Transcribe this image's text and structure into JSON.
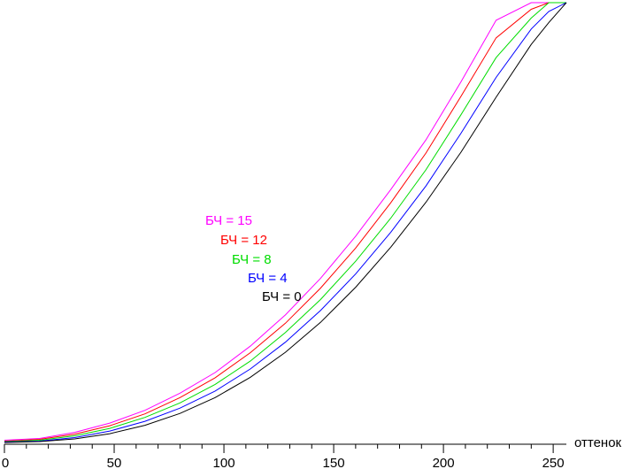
{
  "chart_data": {
    "type": "line",
    "xlabel": "оттенок",
    "ylabel": "",
    "xlim": [
      0,
      256
    ],
    "ylim": [
      0,
      1
    ],
    "xticks": [
      0,
      50,
      100,
      150,
      200,
      250
    ],
    "grid": false,
    "legend": "inline labels, center-left",
    "x": [
      0,
      16,
      32,
      48,
      64,
      80,
      96,
      112,
      128,
      144,
      160,
      176,
      192,
      208,
      224,
      240,
      248,
      256
    ],
    "series": [
      {
        "name": "БЧ = 15",
        "color": "#ff00ff",
        "values": [
          0.005,
          0.009,
          0.023,
          0.044,
          0.073,
          0.112,
          0.159,
          0.219,
          0.29,
          0.373,
          0.469,
          0.575,
          0.688,
          0.82,
          0.96,
          1.0,
          1.0,
          1.0
        ]
      },
      {
        "name": "БЧ = 12",
        "color": "#ff0000",
        "values": [
          0.003,
          0.007,
          0.019,
          0.038,
          0.065,
          0.102,
          0.147,
          0.204,
          0.271,
          0.351,
          0.442,
          0.545,
          0.658,
          0.787,
          0.92,
          0.985,
          1.0,
          1.0
        ]
      },
      {
        "name": "БЧ = 8",
        "color": "#00dd00",
        "values": [
          0.002,
          0.005,
          0.015,
          0.032,
          0.057,
          0.09,
          0.132,
          0.185,
          0.25,
          0.325,
          0.412,
          0.51,
          0.62,
          0.745,
          0.875,
          0.965,
          1.0,
          1.0
        ]
      },
      {
        "name": "БЧ = 4",
        "color": "#0000ff",
        "values": [
          0.001,
          0.003,
          0.011,
          0.026,
          0.048,
          0.078,
          0.117,
          0.167,
          0.228,
          0.3,
          0.383,
          0.478,
          0.583,
          0.703,
          0.83,
          0.94,
          0.98,
          1.0
        ]
      },
      {
        "name": "БЧ = 0",
        "color": "#000000",
        "values": [
          0.0,
          0.002,
          0.008,
          0.02,
          0.039,
          0.066,
          0.102,
          0.148,
          0.205,
          0.273,
          0.353,
          0.444,
          0.546,
          0.66,
          0.785,
          0.905,
          0.955,
          1.0
        ]
      }
    ]
  }
}
